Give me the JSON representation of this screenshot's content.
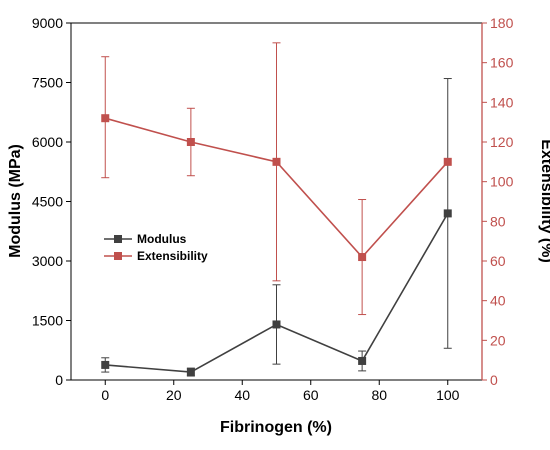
{
  "chart_data": {
    "type": "line",
    "xlabel": "Fibrinogen (%)",
    "ylabel": "Modulus (MPa)",
    "y2label": "Extensibility (%)",
    "xlim": [
      -10,
      110
    ],
    "ylim": [
      0,
      9000
    ],
    "y2lim": [
      0,
      180
    ],
    "x_ticks": [
      0,
      20,
      40,
      60,
      80,
      100
    ],
    "y_ticks": [
      0,
      1500,
      3000,
      4500,
      6000,
      7500,
      9000
    ],
    "y2_ticks": [
      0,
      20,
      40,
      60,
      80,
      100,
      120,
      140,
      160,
      180
    ],
    "grid": false,
    "legend_position": "center-left",
    "series": [
      {
        "name": "Modulus",
        "axis": "left",
        "color": "#404040",
        "marker": "square",
        "x": [
          0,
          25,
          50,
          75,
          100
        ],
        "values": [
          380,
          200,
          1400,
          480,
          4200
        ],
        "error_low": [
          180,
          100,
          1000,
          250,
          3400
        ],
        "error_high": [
          180,
          100,
          1000,
          250,
          3400
        ]
      },
      {
        "name": "Extensibility",
        "axis": "right",
        "color": "#c0504d",
        "marker": "square",
        "x": [
          0,
          25,
          50,
          75,
          100
        ],
        "values": [
          132,
          120,
          110,
          62,
          110
        ],
        "error_low": [
          30,
          17,
          60,
          29,
          0
        ],
        "error_high": [
          31,
          17,
          60,
          29,
          0
        ]
      }
    ]
  }
}
